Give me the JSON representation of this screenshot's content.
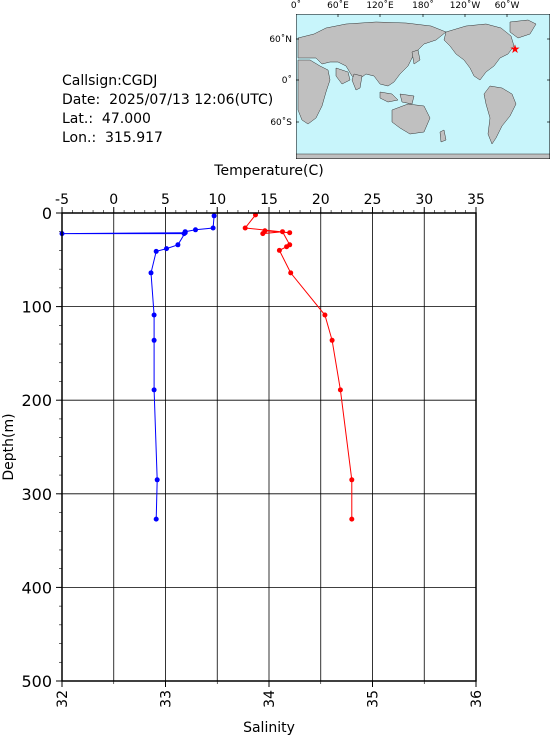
{
  "station": {
    "callsign": "Callsign:CGDJ",
    "date": "Date:  2025/07/13 12:06(UTC)",
    "lat": "Lat.:  47.000",
    "lon": "Lon.:  315.917"
  },
  "map": {
    "top_ticks": [
      "0˚",
      "60˚E",
      "120˚E",
      "180˚",
      "120˚W",
      "60˚W"
    ],
    "left_ticks": [
      "60˚N",
      "0˚",
      "60˚S"
    ],
    "ocean_color": "#c8f5fb",
    "land_color": "#c0c0c0",
    "marker_icon": "star-icon",
    "marker_color": "#ff0000"
  },
  "chart_data": {
    "type": "line",
    "top_axis_label": "Temperature(C)",
    "bottom_axis_label": "Salinity",
    "ylabel": "Depth(m)",
    "temperature_ticks": [
      "-5",
      "0",
      "5",
      "10",
      "15",
      "20",
      "25",
      "30",
      "35"
    ],
    "salinity_ticks": [
      "32",
      "33",
      "34",
      "35",
      "36"
    ],
    "depth_ticks": [
      "0",
      "100",
      "200",
      "300",
      "400",
      "500"
    ],
    "temperature_range": [
      -5,
      35
    ],
    "salinity_range": [
      32,
      36
    ],
    "depth_range": [
      0,
      500
    ],
    "grid": true,
    "series": [
      {
        "axis": "salinity",
        "color": "#0000ff",
        "points": [
          {
            "depth": 3,
            "value": 33.47
          },
          {
            "depth": 16,
            "value": 33.46
          },
          {
            "depth": 18,
            "value": 33.29
          },
          {
            "depth": 20,
            "value": 33.19
          },
          {
            "depth": 22,
            "value": 33.18
          },
          {
            "depth": 22,
            "value": 32.0
          },
          {
            "depth": 21,
            "value": 33.19
          },
          {
            "depth": 34,
            "value": 33.12
          },
          {
            "depth": 38,
            "value": 33.01
          },
          {
            "depth": 41,
            "value": 32.91
          },
          {
            "depth": 64,
            "value": 32.86
          },
          {
            "depth": 109,
            "value": 32.89
          },
          {
            "depth": 136,
            "value": 32.89
          },
          {
            "depth": 189,
            "value": 32.89
          },
          {
            "depth": 285,
            "value": 32.92
          },
          {
            "depth": 327,
            "value": 32.91
          }
        ]
      },
      {
        "axis": "temperature",
        "color": "#ff0000",
        "points": [
          {
            "depth": 2,
            "value": 13.7
          },
          {
            "depth": 16,
            "value": 12.7
          },
          {
            "depth": 21,
            "value": 17.0
          },
          {
            "depth": 19,
            "value": 14.6
          },
          {
            "depth": 22,
            "value": 14.4
          },
          {
            "depth": 20,
            "value": 16.3
          },
          {
            "depth": 34,
            "value": 17.0
          },
          {
            "depth": 36,
            "value": 16.7
          },
          {
            "depth": 40,
            "value": 16.0
          },
          {
            "depth": 64,
            "value": 17.1
          },
          {
            "depth": 109,
            "value": 20.4
          },
          {
            "depth": 136,
            "value": 21.1
          },
          {
            "depth": 189,
            "value": 21.9
          },
          {
            "depth": 285,
            "value": 23.0
          },
          {
            "depth": 327,
            "value": 23.0
          }
        ]
      }
    ]
  }
}
